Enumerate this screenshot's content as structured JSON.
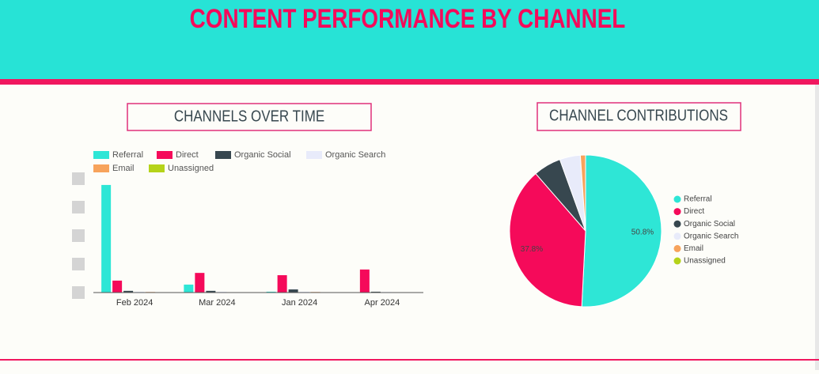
{
  "header": {
    "title": "CONTENT PERFORMANCE BY CHANNEL"
  },
  "chart_data": [
    {
      "type": "bar",
      "title": "CHANNELS OVER TIME",
      "categories": [
        "Feb 2024",
        "Mar 2024",
        "Jan 2024",
        "Apr 2024"
      ],
      "ylim": [
        0,
        4
      ],
      "series": [
        {
          "name": "Referral",
          "color": "#2ee6d6",
          "values": [
            3.78,
            0.28,
            0.03,
            0
          ]
        },
        {
          "name": "Direct",
          "color": "#f50a5a",
          "values": [
            0.42,
            0.69,
            0.61,
            0.81
          ]
        },
        {
          "name": "Organic Social",
          "color": "#37474f",
          "values": [
            0.06,
            0.06,
            0.11,
            0.03
          ]
        },
        {
          "name": "Organic Search",
          "color": "#e8ebfa",
          "values": [
            0.03,
            0.03,
            0.03,
            0.02
          ]
        },
        {
          "name": "Email",
          "color": "#f7a35c",
          "values": [
            0.02,
            0.01,
            0.02,
            0.01
          ]
        },
        {
          "name": "Unassigned",
          "color": "#b5d31a",
          "values": [
            0,
            0,
            0,
            0
          ]
        }
      ]
    },
    {
      "type": "pie",
      "title": "CHANNEL CONTRIBUTIONS",
      "categories": [
        "Referral",
        "Direct",
        "Organic Social",
        "Organic Search",
        "Email",
        "Unassigned"
      ],
      "values": [
        50.8,
        37.8,
        5.9,
        4.4,
        1.1,
        0
      ],
      "value_labels": [
        "50.8%",
        "37.8%",
        null,
        null,
        null,
        null
      ],
      "colors": [
        "#2ee6d6",
        "#f50a5a",
        "#37474f",
        "#e8ebfa",
        "#f7a35c",
        "#b5d31a"
      ]
    }
  ]
}
